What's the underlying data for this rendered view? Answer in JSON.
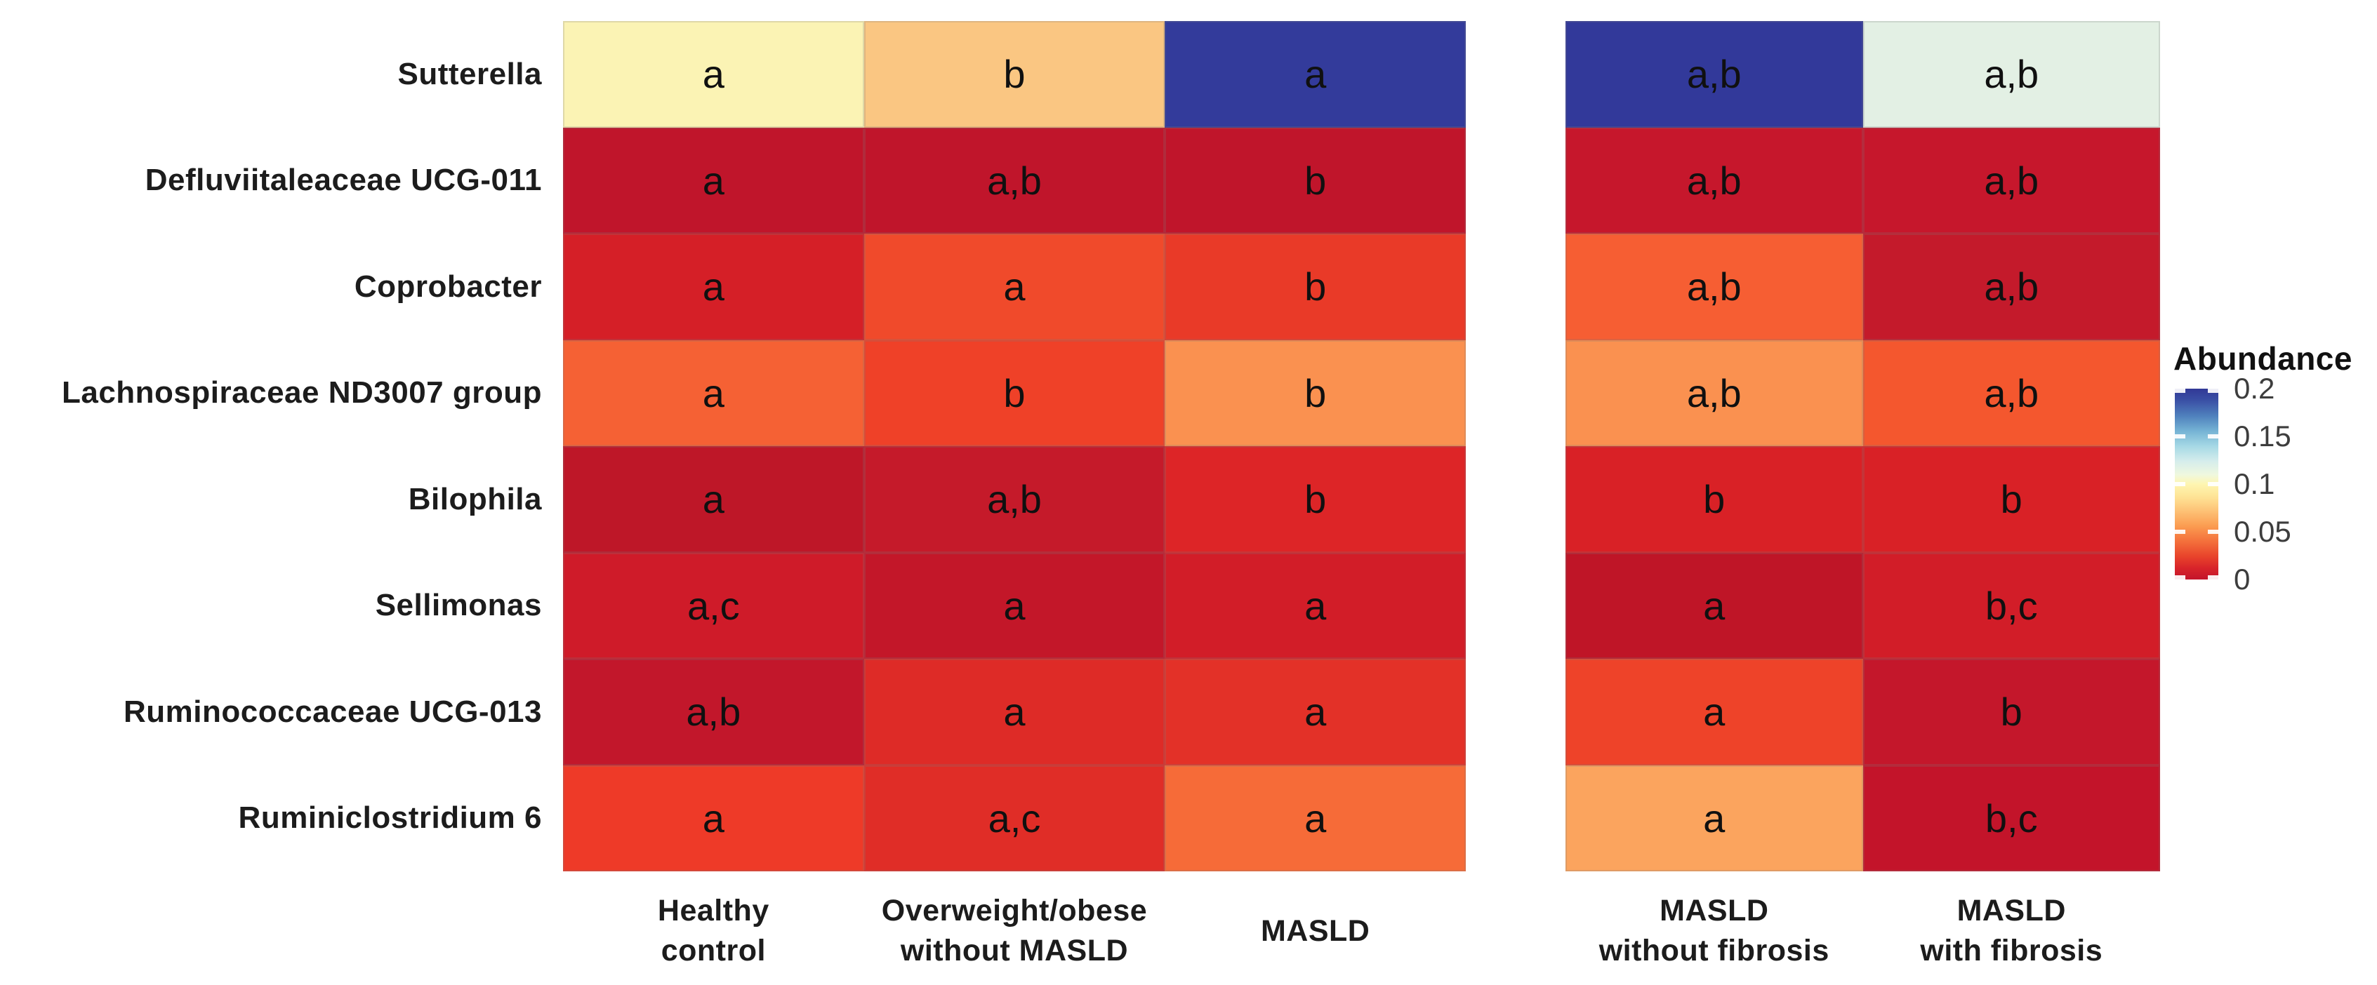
{
  "chart_data": {
    "type": "heatmap",
    "title": "",
    "ylabel": "",
    "xlabel": "",
    "grid": "thin gray cell borders",
    "legend": {
      "title": "Abundance",
      "position": "right",
      "ticks": [
        "0.2",
        "0.15",
        "0.1",
        "0.05",
        "0"
      ],
      "range": [
        0,
        0.2
      ],
      "gradient_top_to_bottom": [
        {
          "pos": 0,
          "color": "#313896"
        },
        {
          "pos": 6,
          "color": "#3A4FA5"
        },
        {
          "pos": 14,
          "color": "#4E7FBC"
        },
        {
          "pos": 22,
          "color": "#74B2D4"
        },
        {
          "pos": 30,
          "color": "#A5D8E5"
        },
        {
          "pos": 38,
          "color": "#D5EDEC"
        },
        {
          "pos": 45,
          "color": "#EFF8DF"
        },
        {
          "pos": 50,
          "color": "#FEF6B1"
        },
        {
          "pos": 57,
          "color": "#FEE294"
        },
        {
          "pos": 64,
          "color": "#FDC276"
        },
        {
          "pos": 72,
          "color": "#FB9C51"
        },
        {
          "pos": 80,
          "color": "#F4703B"
        },
        {
          "pos": 88,
          "color": "#E8432B"
        },
        {
          "pos": 94,
          "color": "#D8242A"
        },
        {
          "pos": 100,
          "color": "#C3142B"
        }
      ]
    },
    "rows": [
      "Sutterella",
      "Defluviitaleaceae UCG-011",
      "Coprobacter",
      "Lachnospiraceae ND3007 group",
      "Bilophila",
      "Sellimonas",
      "Ruminococcaceae UCG-013",
      "Ruminiclostridium 6"
    ],
    "panels": [
      {
        "id": "left",
        "columns": [
          {
            "lines": [
              "Healthy",
              "control"
            ]
          },
          {
            "lines": [
              "Overweight/obese",
              "without MASLD"
            ]
          },
          {
            "lines": [
              "MASLD"
            ]
          }
        ],
        "cells": [
          [
            {
              "letters": "a",
              "color": "#FBF3B4",
              "abundance_est": 0.095
            },
            {
              "letters": "b",
              "color": "#FAC682",
              "abundance_est": 0.065
            },
            {
              "letters": "a",
              "color": "#333B9B",
              "abundance_est": 0.2
            }
          ],
          [
            {
              "letters": "a",
              "color": "#C0152B",
              "abundance_est": 0.003
            },
            {
              "letters": "a,b",
              "color": "#C0152B",
              "abundance_est": 0.003
            },
            {
              "letters": "b",
              "color": "#C0152B",
              "abundance_est": 0.003
            }
          ],
          [
            {
              "letters": "a",
              "color": "#D51F27",
              "abundance_est": 0.013
            },
            {
              "letters": "a",
              "color": "#F04A2B",
              "abundance_est": 0.028
            },
            {
              "letters": "b",
              "color": "#E93A28",
              "abundance_est": 0.023
            }
          ],
          [
            {
              "letters": "a",
              "color": "#F56134",
              "abundance_est": 0.035
            },
            {
              "letters": "b",
              "color": "#EF4128",
              "abundance_est": 0.025
            },
            {
              "letters": "b",
              "color": "#FA9150",
              "abundance_est": 0.05
            }
          ],
          [
            {
              "letters": "a",
              "color": "#BE1728",
              "abundance_est": 0.003
            },
            {
              "letters": "a,b",
              "color": "#C51A2A",
              "abundance_est": 0.006
            },
            {
              "letters": "b",
              "color": "#DD2527",
              "abundance_est": 0.017
            }
          ],
          [
            {
              "letters": "a,c",
              "color": "#CF1B29",
              "abundance_est": 0.01
            },
            {
              "letters": "a",
              "color": "#C31729",
              "abundance_est": 0.005
            },
            {
              "letters": "a",
              "color": "#D21D28",
              "abundance_est": 0.012
            }
          ],
          [
            {
              "letters": "a,b",
              "color": "#C2172B",
              "abundance_est": 0.005
            },
            {
              "letters": "a",
              "color": "#DE2B27",
              "abundance_est": 0.017
            },
            {
              "letters": "a",
              "color": "#E33128",
              "abundance_est": 0.02
            }
          ],
          [
            {
              "letters": "a",
              "color": "#EE3A28",
              "abundance_est": 0.026
            },
            {
              "letters": "a,c",
              "color": "#E02D27",
              "abundance_est": 0.018
            },
            {
              "letters": "a",
              "color": "#F66B38",
              "abundance_est": 0.038
            }
          ]
        ]
      },
      {
        "id": "right",
        "columns": [
          {
            "lines": [
              "MASLD",
              "without fibrosis"
            ]
          },
          {
            "lines": [
              "MASLD",
              "with fibrosis"
            ]
          }
        ],
        "cells": [
          [
            {
              "letters": "a,b",
              "color": "#32399A",
              "abundance_est": 0.2
            },
            {
              "letters": "a,b",
              "color": "#E3F0E4",
              "abundance_est": 0.115
            }
          ],
          [
            {
              "letters": "a,b",
              "color": "#C6172C",
              "abundance_est": 0.005
            },
            {
              "letters": "a,b",
              "color": "#C6172C",
              "abundance_est": 0.005
            }
          ],
          [
            {
              "letters": "a,b",
              "color": "#F65E33",
              "abundance_est": 0.035
            },
            {
              "letters": "a,b",
              "color": "#C41A2B",
              "abundance_est": 0.005
            }
          ],
          [
            {
              "letters": "a,b",
              "color": "#FA9150",
              "abundance_est": 0.05
            },
            {
              "letters": "a,b",
              "color": "#F4572E",
              "abundance_est": 0.032
            }
          ],
          [
            {
              "letters": "b",
              "color": "#D92126",
              "abundance_est": 0.015
            },
            {
              "letters": "b",
              "color": "#D92126",
              "abundance_est": 0.015
            }
          ],
          [
            {
              "letters": "a",
              "color": "#BF1527",
              "abundance_est": 0.003
            },
            {
              "letters": "b,c",
              "color": "#D21D28",
              "abundance_est": 0.012
            }
          ],
          [
            {
              "letters": "a",
              "color": "#EE4329",
              "abundance_est": 0.026
            },
            {
              "letters": "b",
              "color": "#C4172B",
              "abundance_est": 0.005
            }
          ],
          [
            {
              "letters": "a",
              "color": "#FBA45E",
              "abundance_est": 0.055
            },
            {
              "letters": "b,c",
              "color": "#C3142A",
              "abundance_est": 0.005
            }
          ]
        ]
      }
    ]
  }
}
